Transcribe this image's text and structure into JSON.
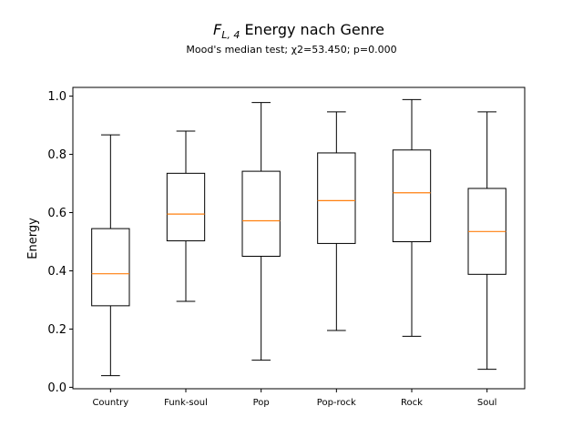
{
  "chart_data": {
    "type": "box",
    "title_prefix": "F",
    "title_subscript": "L, 4",
    "title_rest": " Energy nach Genre",
    "subtitle": "Mood's median test; χ2=53.450; p=0.000",
    "xlabel": "",
    "ylabel": "Energy",
    "ylim": [
      -0.005,
      1.03
    ],
    "yticks": [
      "0.0",
      "0.2",
      "0.4",
      "0.6",
      "0.8",
      "1.0"
    ],
    "grid": false,
    "box_color": "#000000",
    "median_color": "#ff7f0e",
    "categories": [
      "Country",
      "Funk-soul",
      "Pop",
      "Pop-rock",
      "Rock",
      "Soul"
    ],
    "boxes": [
      {
        "whisker_low": 0.04,
        "q1": 0.28,
        "median": 0.39,
        "q3": 0.545,
        "whisker_high": 0.867
      },
      {
        "whisker_low": 0.295,
        "q1": 0.503,
        "median": 0.595,
        "q3": 0.735,
        "whisker_high": 0.88
      },
      {
        "whisker_low": 0.093,
        "q1": 0.45,
        "median": 0.572,
        "q3": 0.742,
        "whisker_high": 0.978
      },
      {
        "whisker_low": 0.195,
        "q1": 0.494,
        "median": 0.641,
        "q3": 0.805,
        "whisker_high": 0.946
      },
      {
        "whisker_low": 0.175,
        "q1": 0.5,
        "median": 0.668,
        "q3": 0.815,
        "whisker_high": 0.988
      },
      {
        "whisker_low": 0.062,
        "q1": 0.388,
        "median": 0.535,
        "q3": 0.683,
        "whisker_high": 0.946
      }
    ]
  }
}
